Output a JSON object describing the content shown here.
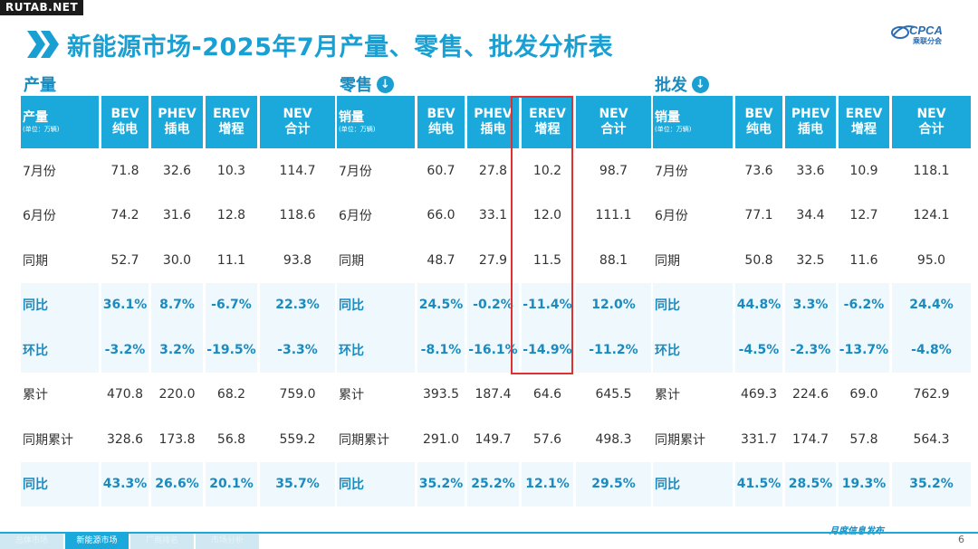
{
  "site": "RUTAB.NET",
  "title": "新能源市场-2025年7月产量、零售、批发分析表",
  "logo": "CPCA",
  "logo_sub": "乘联分会",
  "sections": [
    {
      "title": "产量",
      "has_icon": false,
      "headers": [
        {
          "top": "产量",
          "sub": "(单位：万辆)"
        },
        {
          "top": "BEV",
          "sub": "纯电"
        },
        {
          "top": "PHEV",
          "sub": "插电"
        },
        {
          "top": "EREV",
          "sub": "增程"
        },
        {
          "top": "NEV",
          "sub": "合计"
        }
      ],
      "rows": [
        [
          "7月份",
          "71.8",
          "32.6",
          "10.3",
          "114.7"
        ],
        [
          "6月份",
          "74.2",
          "31.6",
          "12.8",
          "118.6"
        ],
        [
          "同期",
          "52.7",
          "30.0",
          "11.1",
          "93.8"
        ],
        [
          "同比",
          "36.1%",
          "8.7%",
          "-6.7%",
          "22.3%"
        ],
        [
          "环比",
          "-3.2%",
          "3.2%",
          "-19.5%",
          "-3.3%"
        ],
        [
          "累计",
          "470.8",
          "220.0",
          "68.2",
          "759.0"
        ],
        [
          "同期累计",
          "328.6",
          "173.8",
          "56.8",
          "559.2"
        ],
        [
          "同比",
          "43.3%",
          "26.6%",
          "20.1%",
          "35.7%"
        ]
      ]
    },
    {
      "title": "零售",
      "has_icon": true,
      "headers": [
        {
          "top": "销量",
          "sub": "(单位：万辆)"
        },
        {
          "top": "BEV",
          "sub": "纯电"
        },
        {
          "top": "PHEV",
          "sub": "插电"
        },
        {
          "top": "EREV",
          "sub": "增程"
        },
        {
          "top": "NEV",
          "sub": "合计"
        }
      ],
      "rows": [
        [
          "7月份",
          "60.7",
          "27.8",
          "10.2",
          "98.7"
        ],
        [
          "6月份",
          "66.0",
          "33.1",
          "12.0",
          "111.1"
        ],
        [
          "同期",
          "48.7",
          "27.9",
          "11.5",
          "88.1"
        ],
        [
          "同比",
          "24.5%",
          "-0.2%",
          "-11.4%",
          "12.0%"
        ],
        [
          "环比",
          "-8.1%",
          "-16.1%",
          "-14.9%",
          "-11.2%"
        ],
        [
          "累计",
          "393.5",
          "187.4",
          "64.6",
          "645.5"
        ],
        [
          "同期累计",
          "291.0",
          "149.7",
          "57.6",
          "498.3"
        ],
        [
          "同比",
          "35.2%",
          "25.2%",
          "12.1%",
          "29.5%"
        ]
      ]
    },
    {
      "title": "批发",
      "has_icon": true,
      "headers": [
        {
          "top": "销量",
          "sub": "(单位：万辆)"
        },
        {
          "top": "BEV",
          "sub": "纯电"
        },
        {
          "top": "PHEV",
          "sub": "插电"
        },
        {
          "top": "EREV",
          "sub": "增程"
        },
        {
          "top": "NEV",
          "sub": "合计"
        }
      ],
      "rows": [
        [
          "7月份",
          "73.6",
          "33.6",
          "10.9",
          "118.1"
        ],
        [
          "6月份",
          "77.1",
          "34.4",
          "12.7",
          "124.1"
        ],
        [
          "同期",
          "50.8",
          "32.5",
          "11.6",
          "95.0"
        ],
        [
          "同比",
          "44.8%",
          "3.3%",
          "-6.2%",
          "24.4%"
        ],
        [
          "环比",
          "-4.5%",
          "-2.3%",
          "-13.7%",
          "-4.8%"
        ],
        [
          "累计",
          "469.3",
          "224.6",
          "69.0",
          "762.9"
        ],
        [
          "同期累计",
          "331.7",
          "174.7",
          "57.8",
          "564.3"
        ],
        [
          "同比",
          "41.5%",
          "28.5%",
          "19.3%",
          "35.2%"
        ]
      ]
    }
  ],
  "highlight_rows": [
    3,
    4,
    7
  ],
  "footer": {
    "tabs": [
      "总体市场",
      "新能源市场",
      "厂商排名",
      "市场分析"
    ],
    "active_tab": 1,
    "note": "月度信息发布",
    "page": "6"
  },
  "colors": {
    "accent": "#1ba9db",
    "highlight_box": "#e03030"
  }
}
